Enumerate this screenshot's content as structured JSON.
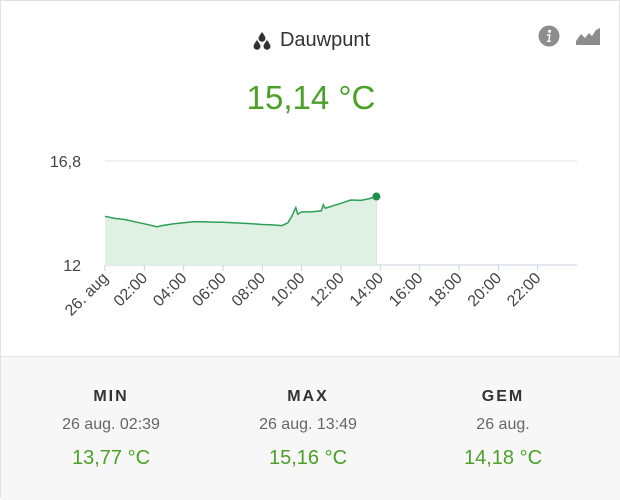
{
  "widget": {
    "title": "Dauwpunt",
    "title_icon": "dew-drops-icon",
    "current_value": "15,14 °C",
    "value_color": "#4ca02a",
    "actions": [
      {
        "icon": "info-icon"
      },
      {
        "icon": "trend-chart-icon"
      }
    ]
  },
  "chart_data": {
    "type": "area",
    "title": "",
    "xlabel": "",
    "ylabel": "",
    "ylim": [
      12,
      16.8
    ],
    "y_ticks": [
      "16,8",
      "12"
    ],
    "x_ticks": [
      "26. aug",
      "02:00",
      "04:00",
      "06:00",
      "08:00",
      "10:00",
      "12:00",
      "14:00",
      "16:00",
      "18:00",
      "20:00",
      "22:00"
    ],
    "x_range_hours": [
      0,
      24
    ],
    "grid": "horizontal",
    "line_color": "#2f9e57",
    "fill_color": "#dff1e3",
    "series": [
      {
        "x": [
          0,
          0.5,
          1,
          1.5,
          2,
          2.65,
          3,
          3.5,
          4,
          4.5,
          5,
          5.5,
          6,
          6.5,
          7,
          7.5,
          8,
          8.5,
          9,
          9.3,
          9.5,
          9.7,
          9.8,
          10,
          10.5,
          11,
          11.1,
          11.2,
          11.3,
          12,
          12.5,
          13,
          13.4,
          13.8
        ],
        "y": [
          14.25,
          14.15,
          14.1,
          14.0,
          13.9,
          13.77,
          13.83,
          13.9,
          13.95,
          14.0,
          14.0,
          13.98,
          13.97,
          13.95,
          13.93,
          13.9,
          13.87,
          13.85,
          13.82,
          13.95,
          14.25,
          14.65,
          14.35,
          14.45,
          14.45,
          14.5,
          14.78,
          14.62,
          14.65,
          14.85,
          15.0,
          14.98,
          15.05,
          15.16
        ]
      }
    ]
  },
  "stats": [
    {
      "label": "MIN",
      "date": "26 aug. 02:39",
      "value": "13,77 °C"
    },
    {
      "label": "MAX",
      "date": "26 aug. 13:49",
      "value": "15,16 °C"
    },
    {
      "label": "GEM",
      "date": "26 aug.",
      "value": "14,18 °C"
    }
  ]
}
